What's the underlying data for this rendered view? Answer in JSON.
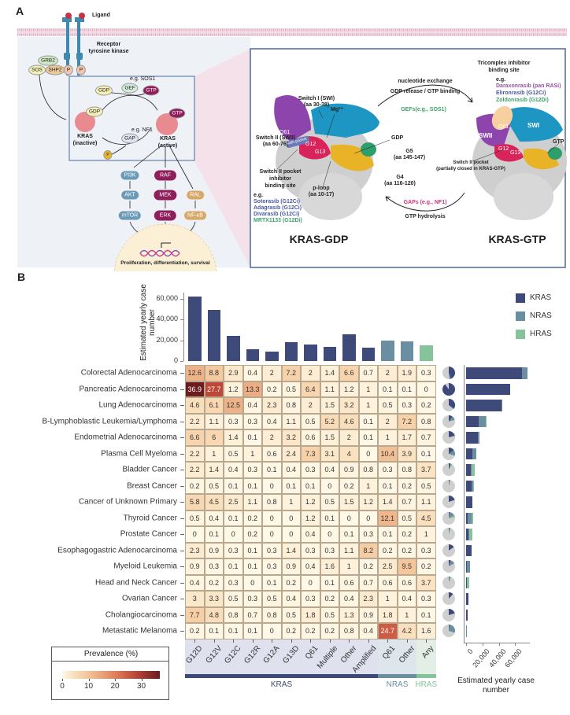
{
  "panel_a": {
    "label": "A",
    "ligand": "Ligand",
    "receptor": [
      "Receptor",
      "tyrosine kinase"
    ],
    "adaptors": {
      "grb2": "GRB2",
      "sos": "SOS",
      "shp2": "SHP2",
      "p": "P"
    },
    "cycle": {
      "gdp": "GDP",
      "gef": "GEF",
      "eg_sos1": "e.g. SOS1",
      "gtp": "GTP",
      "eg_nf1": "e.g. NF1",
      "gap": "GAP",
      "p": "P",
      "kras_inactive": [
        "KRAS",
        "(inactive)"
      ],
      "kras_active": [
        "KRAS",
        "(active)"
      ]
    },
    "pathways": {
      "pi3k": "PI3K",
      "akt": "AKT",
      "mtor": "mTOR",
      "raf": "RAF",
      "mek": "MEK",
      "erk": "ERK",
      "ral": "RAL",
      "nfkb": "NF-κB"
    },
    "nucleus_text": "Proliferation, differentiation, survival",
    "structure": {
      "tricomplex": [
        "Tricomplex inhibitor",
        "binding site"
      ],
      "eg": "e.g.",
      "tricomplex_drugs": [
        "Daraxonrasib (pan RASi)",
        "Elironrasib (G12Ci)",
        "Zoldonrasib (G12Di)"
      ],
      "nucleotide_exchange": "nucleotide exchange",
      "gdp_release": "GDP release / GTP binding",
      "gefs": "GEFs(e.g., SOS1)",
      "switch1": [
        "Switch I (SWI)",
        "(aa 30-38)"
      ],
      "mg": "Mg²⁺",
      "switch2": [
        "Switch II (SWII)",
        "(aa 60-76)"
      ],
      "gdp": "GDP",
      "g5": [
        "G5",
        "(aa 145-147)"
      ],
      "g4": [
        "G4",
        "(aa 116-120)"
      ],
      "sw2_pocket": [
        "Switch II pocket",
        "inhibitor",
        "binding site"
      ],
      "sw2_drugs": [
        "Sotorasib (G12Ci)",
        "Adagrasib (G12Ci)",
        "Divarasib (G12Ci)",
        "MRTX1133 (G12Di)"
      ],
      "ploop": [
        "p-loop",
        "(aa 10-17)"
      ],
      "gaps": "GAPs (e.g., NF1)",
      "gtp_hydrolysis": "GTP hydrolysis",
      "sw2_partial": [
        "Switch II pocket",
        "(partially closed in KRAS-GTP)"
      ],
      "gtp": "GTP",
      "kras_gdp": "KRAS-GDP",
      "kras_gtp": "KRAS-GTP",
      "residues": {
        "q61": "Q61",
        "g12": "G12",
        "g13": "G13",
        "swii_pocket": "SWII pocket",
        "swii": "SWII",
        "swi": "SWI"
      }
    }
  },
  "panel_b": {
    "label": "B"
  },
  "colors": {
    "kras": "#3d4a7a",
    "nras": "#6a8fa3",
    "hras": "#86c29a",
    "other": "#cfcfcf"
  },
  "chart_data": [
    {
      "type": "bar",
      "name": "top",
      "ylabel": "Estimated yearly case number",
      "yticks": [
        "0",
        "20,000",
        "40,000",
        "60,000"
      ],
      "ytick_values": [
        0,
        20000,
        40000,
        60000
      ],
      "ylim": [
        0,
        65000
      ],
      "values": [
        62000,
        49000,
        24000,
        11500,
        9000,
        18500,
        16000,
        13500,
        25500,
        13000,
        19500,
        19000,
        15000
      ],
      "legend": [
        "KRAS",
        "NRAS",
        "HRAS"
      ],
      "legend_position": "top-right"
    },
    {
      "type": "heatmap",
      "name": "prevalence",
      "rows": [
        "Colorectal Adenocarcinoma",
        "Pancreatic Adenocarcinoma",
        "Lung Adenocarcinoma",
        "B-Lymphoblastic Leukemia/Lymphoma",
        "Endometrial Adenocarcinoma",
        "Plasma Cell Myeloma",
        "Bladder Cancer",
        "Breast Cancer",
        "Cancer of Unknown Primary",
        "Thyroid Cancer",
        "Prostate Cancer",
        "Esophagogastric Adenocarcinoma",
        "Myeloid Leukemia",
        "Head and Neck Cancer",
        "Ovarian Cancer",
        "Cholangiocarcinoma",
        "Metastatic Melanoma"
      ],
      "columns": [
        "G12D",
        "G12V",
        "G12C",
        "G12R",
        "G12A",
        "G13D",
        "Q61",
        "Multiple",
        "Other",
        "Amplified",
        "Q61",
        "Other",
        "Any"
      ],
      "column_groups": [
        {
          "name": "KRAS",
          "span": 10
        },
        {
          "name": "NRAS",
          "span": 2
        },
        {
          "name": "HRAS",
          "span": 1
        }
      ],
      "values": [
        [
          12.6,
          8.8,
          2.9,
          0.4,
          2,
          7.2,
          2,
          1.4,
          6.6,
          0.7,
          2,
          1.9,
          0.3
        ],
        [
          36.9,
          27.7,
          1.2,
          13.3,
          0.2,
          0.5,
          6.4,
          1.1,
          1.2,
          1,
          0.1,
          0.1,
          0
        ],
        [
          4.6,
          6.1,
          12.5,
          0.4,
          2.3,
          0.8,
          2,
          1.5,
          3.2,
          1,
          0.5,
          0.3,
          0.2
        ],
        [
          2.2,
          1.1,
          0.3,
          0.3,
          0.4,
          1.1,
          0.5,
          5.2,
          4.6,
          0.1,
          2,
          7.2,
          0.8
        ],
        [
          6.6,
          6,
          1.4,
          0.1,
          2,
          3.2,
          0.6,
          1.5,
          2,
          0.1,
          1,
          1.7,
          0.7
        ],
        [
          2.2,
          1,
          0.5,
          1,
          0.6,
          2.4,
          7.3,
          3.1,
          4,
          0,
          10.4,
          3.9,
          0.1
        ],
        [
          2.2,
          1.4,
          0.4,
          0.3,
          0.1,
          0.4,
          0.3,
          0.4,
          0.9,
          0.8,
          0.3,
          0.8,
          3.7
        ],
        [
          0.2,
          0.5,
          0.1,
          0.1,
          0,
          0.1,
          0.1,
          0,
          0.2,
          1,
          0.1,
          0.2,
          0.5
        ],
        [
          5.8,
          4.5,
          2.5,
          1.1,
          0.8,
          1,
          1.2,
          0.5,
          1.5,
          1.2,
          1.4,
          0.7,
          1.1
        ],
        [
          0.5,
          0.4,
          0.1,
          0.2,
          0,
          0,
          1.2,
          0.1,
          0,
          0,
          12.1,
          0.5,
          4.5
        ],
        [
          0,
          0.1,
          0,
          0.2,
          0,
          0,
          0.4,
          0,
          0.1,
          0.3,
          0.1,
          0.2,
          1
        ],
        [
          2.3,
          0.9,
          0.3,
          0.1,
          0.3,
          1.4,
          0.3,
          0.3,
          1.1,
          8.2,
          0.2,
          0.2,
          0.3
        ],
        [
          0.9,
          0.3,
          0.1,
          0.1,
          0.3,
          0.9,
          0.4,
          1.6,
          1,
          0.2,
          2.5,
          9.5,
          0.2
        ],
        [
          0.4,
          0.2,
          0.3,
          0,
          0.1,
          0.2,
          0,
          0.1,
          0.6,
          0.7,
          0.6,
          0.6,
          3.7
        ],
        [
          3,
          3.3,
          0.5,
          0.3,
          0.5,
          0.4,
          0.3,
          0.2,
          0.4,
          2.3,
          1,
          0.4,
          0.3
        ],
        [
          7.7,
          4.8,
          0.8,
          0.7,
          0.8,
          0.5,
          1.8,
          0.5,
          1.3,
          0.9,
          1.8,
          1,
          0.1
        ],
        [
          0.2,
          0.1,
          0.1,
          0.1,
          0,
          0.2,
          0.2,
          0.2,
          0.8,
          0.4,
          24.7,
          4.2,
          1.6
        ]
      ],
      "legend": {
        "title": "Prevalence (%)",
        "ticks": [
          "0",
          "10",
          "20",
          "30"
        ],
        "tick_values": [
          0,
          10,
          20,
          30
        ],
        "range": [
          0,
          37
        ]
      }
    },
    {
      "type": "pie",
      "name": "mutation-fraction",
      "series": [
        "KRAS",
        "NRAS",
        "HRAS"
      ],
      "values": [
        [
          0.45,
          0.03,
          0
        ],
        [
          0.9,
          0,
          0
        ],
        [
          0.35,
          0.01,
          0
        ],
        [
          0.1,
          0.1,
          0.01
        ],
        [
          0.2,
          0.02,
          0
        ],
        [
          0.15,
          0.15,
          0
        ],
        [
          0.05,
          0.01,
          0.04
        ],
        [
          0.02,
          0.01,
          0.01
        ],
        [
          0.2,
          0,
          0
        ],
        [
          0.02,
          0.15,
          0.05
        ],
        [
          0.02,
          0.01,
          0.02
        ],
        [
          0.15,
          0,
          0
        ],
        [
          0.05,
          0.12,
          0
        ],
        [
          0.02,
          0.01,
          0.03
        ],
        [
          0.12,
          0,
          0
        ],
        [
          0.2,
          0.01,
          0
        ],
        [
          0.02,
          0.28,
          0
        ]
      ]
    },
    {
      "type": "bar",
      "name": "right",
      "orientation": "horizontal",
      "stacked": true,
      "xlabel": "Estimated yearly case number",
      "xticks": [
        "0",
        "20,000",
        "40,000",
        "60,000"
      ],
      "xtick_values": [
        0,
        20000,
        40000,
        60000
      ],
      "series": [
        {
          "name": "KRAS",
          "values": [
            68700,
            54200,
            43000,
            15400,
            14100,
            8000,
            5800,
            6400,
            8000,
            1600,
            3200,
            7000,
            1300,
            600,
            2600,
            1900,
            300
          ]
        },
        {
          "name": "NRAS",
          "values": [
            6100,
            0,
            600,
            9000,
            2300,
            4800,
            900,
            1900,
            0,
            4800,
            600,
            0,
            3800,
            700,
            0,
            0,
            1000
          ]
        },
        {
          "name": "HRAS",
          "values": [
            0,
            0,
            0,
            600,
            0,
            0,
            3600,
            1000,
            0,
            1900,
            4200,
            0,
            0,
            2900,
            0,
            0,
            0
          ]
        }
      ]
    }
  ]
}
